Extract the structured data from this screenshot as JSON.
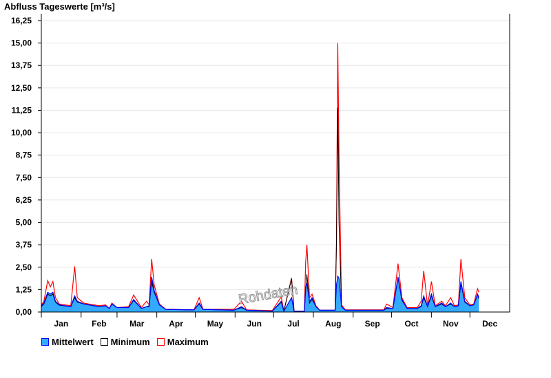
{
  "chart_data": {
    "type": "area",
    "title": "Abfluss Tageswerte [m³/s]",
    "xlabel": "",
    "ylabel": "",
    "ylim": [
      0,
      16.25
    ],
    "yticks": [
      "0,00",
      "1,25",
      "2,50",
      "3,75",
      "5,00",
      "6,25",
      "7,50",
      "8,75",
      "10,00",
      "11,25",
      "12,50",
      "13,75",
      "15,00",
      "16,25"
    ],
    "months": [
      "Jan",
      "Feb",
      "Mar",
      "Apr",
      "May",
      "Jun",
      "Jul",
      "Aug",
      "Sep",
      "Oct",
      "Nov",
      "Dec"
    ],
    "grid": true,
    "legend_position": "bottom-left",
    "series_names": [
      "Mittelwert",
      "Minimum",
      "Maximum"
    ],
    "colors": {
      "mittelwert_fill": "#33aaff",
      "mittelwert_line": "#0000ff",
      "minimum": "#000000",
      "maximum": "#ff0000"
    },
    "points_columns": [
      "date",
      "mittelwert",
      "minimum",
      "maximum"
    ],
    "points": [
      [
        "01-01",
        0.35,
        0.3,
        0.4
      ],
      [
        "01-03",
        0.5,
        0.45,
        0.6
      ],
      [
        "01-06",
        1.1,
        1.0,
        1.75
      ],
      [
        "01-08",
        1.0,
        0.9,
        1.4
      ],
      [
        "01-10",
        1.1,
        1.0,
        1.7
      ],
      [
        "01-12",
        0.6,
        0.55,
        0.8
      ],
      [
        "01-15",
        0.4,
        0.38,
        0.45
      ],
      [
        "01-24",
        0.3,
        0.3,
        0.35
      ],
      [
        "01-27",
        0.9,
        0.8,
        2.55
      ],
      [
        "01-29",
        0.6,
        0.55,
        0.8
      ],
      [
        "02-03",
        0.45,
        0.45,
        0.5
      ],
      [
        "02-15",
        0.3,
        0.3,
        0.35
      ],
      [
        "02-20",
        0.35,
        0.35,
        0.4
      ],
      [
        "02-23",
        0.2,
        0.2,
        0.2
      ],
      [
        "02-25",
        0.45,
        0.45,
        0.5
      ],
      [
        "03-01",
        0.25,
        0.25,
        0.25
      ],
      [
        "03-10",
        0.25,
        0.25,
        0.3
      ],
      [
        "03-14",
        0.7,
        0.65,
        0.95
      ],
      [
        "03-20",
        0.2,
        0.2,
        0.25
      ],
      [
        "03-24",
        0.3,
        0.3,
        0.6
      ],
      [
        "03-26",
        0.35,
        0.3,
        0.4
      ],
      [
        "03-28",
        1.95,
        1.7,
        2.95
      ],
      [
        "03-30",
        1.2,
        1.1,
        1.5
      ],
      [
        "04-03",
        0.4,
        0.4,
        0.45
      ],
      [
        "04-08",
        0.15,
        0.15,
        0.15
      ],
      [
        "04-30",
        0.12,
        0.12,
        0.12
      ],
      [
        "05-04",
        0.5,
        0.45,
        0.8
      ],
      [
        "05-07",
        0.15,
        0.15,
        0.15
      ],
      [
        "05-31",
        0.1,
        0.1,
        0.15
      ],
      [
        "06-06",
        0.3,
        0.25,
        0.6
      ],
      [
        "06-10",
        0.1,
        0.1,
        0.12
      ],
      [
        "06-30",
        0.05,
        0.05,
        0.08
      ],
      [
        "07-07",
        0.6,
        0.55,
        0.85
      ],
      [
        "07-09",
        0.05,
        0.05,
        0.05
      ],
      [
        "07-15",
        0.8,
        1.85,
        1.9
      ],
      [
        "07-17",
        0.05,
        0.05,
        0.05
      ],
      [
        "07-25",
        0.05,
        0.05,
        0.05
      ],
      [
        "07-26",
        1.4,
        1.2,
        2.8
      ],
      [
        "07-27",
        1.6,
        2.1,
        3.75
      ],
      [
        "07-29",
        0.6,
        0.5,
        0.8
      ],
      [
        "07-31",
        0.8,
        0.7,
        1.0
      ],
      [
        "08-03",
        0.3,
        0.3,
        0.35
      ],
      [
        "08-06",
        0.1,
        0.1,
        0.1
      ],
      [
        "08-18",
        0.1,
        0.1,
        0.1
      ],
      [
        "08-19",
        1.5,
        3.8,
        3.8
      ],
      [
        "08-20",
        2.0,
        11.4,
        15.0
      ],
      [
        "08-21",
        1.9,
        5.0,
        8.7
      ],
      [
        "08-23",
        0.3,
        0.3,
        0.4
      ],
      [
        "08-26",
        0.1,
        0.1,
        0.12
      ],
      [
        "09-25",
        0.1,
        0.1,
        0.12
      ],
      [
        "09-27",
        0.25,
        0.2,
        0.45
      ],
      [
        "10-02",
        0.2,
        0.2,
        0.25
      ],
      [
        "10-06",
        1.95,
        1.9,
        2.7
      ],
      [
        "10-09",
        0.7,
        0.65,
        0.8
      ],
      [
        "10-13",
        0.2,
        0.2,
        0.25
      ],
      [
        "10-21",
        0.2,
        0.2,
        0.25
      ],
      [
        "10-24",
        0.35,
        0.3,
        0.6
      ],
      [
        "10-26",
        0.9,
        0.8,
        2.3
      ],
      [
        "10-29",
        0.3,
        0.3,
        0.35
      ],
      [
        "11-01",
        1.0,
        0.9,
        1.7
      ],
      [
        "11-04",
        0.3,
        0.3,
        0.35
      ],
      [
        "11-09",
        0.5,
        0.45,
        0.6
      ],
      [
        "11-12",
        0.3,
        0.3,
        0.35
      ],
      [
        "11-16",
        0.5,
        0.45,
        0.8
      ],
      [
        "11-19",
        0.3,
        0.3,
        0.35
      ],
      [
        "11-22",
        0.35,
        0.35,
        0.4
      ],
      [
        "11-24",
        1.7,
        1.6,
        2.95
      ],
      [
        "11-27",
        0.6,
        0.55,
        0.8
      ],
      [
        "12-01",
        0.35,
        0.35,
        0.4
      ],
      [
        "12-04",
        0.4,
        0.4,
        0.45
      ],
      [
        "12-07",
        1.0,
        0.95,
        1.3
      ],
      [
        "12-08",
        0.8,
        0.75,
        1.1
      ]
    ]
  },
  "watermark": "Rohdaten"
}
